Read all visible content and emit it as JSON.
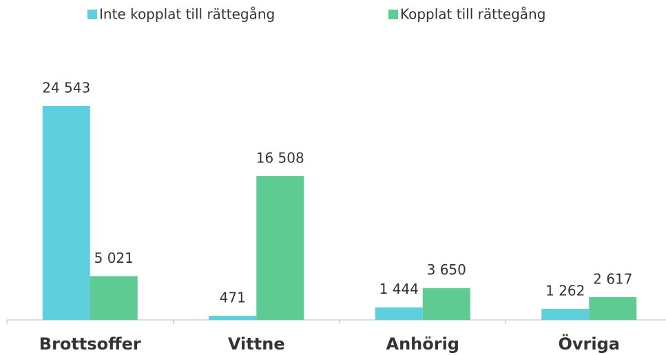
{
  "chart_data": {
    "type": "bar",
    "categories": [
      "Brottsoffer",
      "Vittne",
      "Anhörig",
      "Övriga"
    ],
    "series": [
      {
        "name": "Inte kopplat till rättegång",
        "color": "#5ecfdc",
        "values": [
          24543,
          471,
          1444,
          1262
        ],
        "value_labels": [
          "24 543",
          "471",
          "1 444",
          "1 262"
        ]
      },
      {
        "name": "Kopplat till rättegång",
        "color": "#5ecb93",
        "values": [
          5021,
          16508,
          3650,
          2617
        ],
        "value_labels": [
          "5 021",
          "16 508",
          "3 650",
          "2 617"
        ]
      }
    ],
    "legend": "top"
  }
}
